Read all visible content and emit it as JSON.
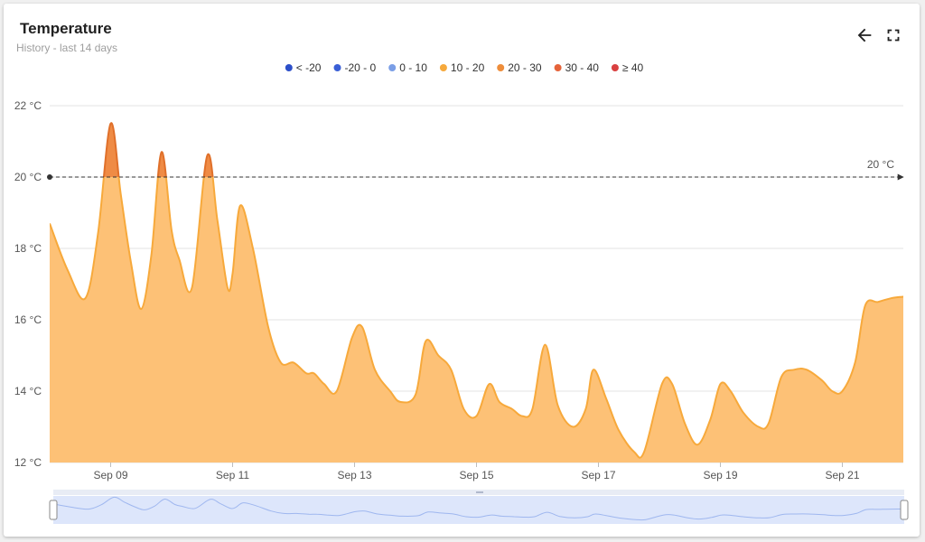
{
  "header": {
    "title": "Temperature",
    "subtitle": "History - last 14 days",
    "back_icon": "arrow-left-icon",
    "fullscreen_icon": "fullscreen-icon"
  },
  "colors": {
    "fill_normal": "#fdc176",
    "line_normal": "#f7a93b",
    "fill_warm": "#ef8b45",
    "line_warm": "#e0702a",
    "gridline": "#e3e3e3",
    "brush_fill": "#dde6fb",
    "brush_line": "#9fb7ef"
  },
  "chart_data": {
    "type": "area",
    "ylim": [
      12,
      22
    ],
    "yticks": [
      {
        "value": 22,
        "label": "22 °C"
      },
      {
        "value": 20,
        "label": "20 °C"
      },
      {
        "value": 18,
        "label": "18 °C"
      },
      {
        "value": 16,
        "label": "16 °C"
      },
      {
        "value": 14,
        "label": "14 °C"
      },
      {
        "value": 12,
        "label": "12 °C"
      }
    ],
    "xlim": [
      "2023-09-08T00:00",
      "2023-09-22T00:00"
    ],
    "xticks": [
      {
        "value": "2023-09-09T00:00",
        "label": "Sep 09"
      },
      {
        "value": "2023-09-11T00:00",
        "label": "Sep 11"
      },
      {
        "value": "2023-09-13T00:00",
        "label": "Sep 13"
      },
      {
        "value": "2023-09-15T00:00",
        "label": "Sep 15"
      },
      {
        "value": "2023-09-17T00:00",
        "label": "Sep 17"
      },
      {
        "value": "2023-09-19T00:00",
        "label": "Sep 19"
      },
      {
        "value": "2023-09-21T00:00",
        "label": "Sep 21"
      }
    ],
    "legend": [
      {
        "label": "< -20",
        "color": "#2c4fc9"
      },
      {
        "label": "-20 - 0",
        "color": "#3a5fd6"
      },
      {
        "label": "0 - 10",
        "color": "#7a9ee6"
      },
      {
        "label": "10 - 20",
        "color": "#f6a93c"
      },
      {
        "label": "20 - 30",
        "color": "#ee8d3b"
      },
      {
        "label": "30 - 40",
        "color": "#e5633a"
      },
      {
        "label": "≥ 40",
        "color": "#d94040"
      }
    ],
    "legend_position": "top-center",
    "grid": true,
    "reference_line": {
      "value": 20,
      "label": "20 °C"
    },
    "series": [
      {
        "x": [
          "2023-09-08T00:00",
          "2023-09-08T07:00",
          "2023-09-08T14:00",
          "2023-09-08T19:00",
          "2023-09-09T00:00",
          "2023-09-09T04:00",
          "2023-09-09T08:00",
          "2023-09-09T12:00",
          "2023-09-09T16:00",
          "2023-09-09T20:00",
          "2023-09-10T00:00",
          "2023-09-10T03:00",
          "2023-09-10T08:00",
          "2023-09-10T14:00",
          "2023-09-10T18:00",
          "2023-09-10T22:00",
          "2023-09-11T00:00",
          "2023-09-11T03:00",
          "2023-09-11T08:00",
          "2023-09-11T14:00",
          "2023-09-11T19:00",
          "2023-09-12T00:00",
          "2023-09-12T05:00",
          "2023-09-12T08:00",
          "2023-09-12T12:00",
          "2023-09-12T17:00",
          "2023-09-12T23:00",
          "2023-09-13T03:00",
          "2023-09-13T08:00",
          "2023-09-13T14:00",
          "2023-09-13T18:00",
          "2023-09-14T00:00",
          "2023-09-14T04:00",
          "2023-09-14T09:00",
          "2023-09-14T14:00",
          "2023-09-14T19:00",
          "2023-09-15T00:00",
          "2023-09-15T05:00",
          "2023-09-15T09:00",
          "2023-09-15T14:00",
          "2023-09-15T18:00",
          "2023-09-15T22:00",
          "2023-09-16T03:00",
          "2023-09-16T08:00",
          "2023-09-16T14:00",
          "2023-09-16T19:00",
          "2023-09-16T22:00",
          "2023-09-17T03:00",
          "2023-09-17T08:00",
          "2023-09-17T14:00",
          "2023-09-17T18:00",
          "2023-09-18T01:00",
          "2023-09-18T05:00",
          "2023-09-18T10:00",
          "2023-09-18T15:00",
          "2023-09-18T20:00",
          "2023-09-19T00:00",
          "2023-09-19T04:00",
          "2023-09-19T09:00",
          "2023-09-19T15:00",
          "2023-09-19T19:00",
          "2023-09-20T00:00",
          "2023-09-20T05:00",
          "2023-09-20T10:00",
          "2023-09-20T16:00",
          "2023-09-20T20:00",
          "2023-09-21T00:00",
          "2023-09-21T05:00",
          "2023-09-21T09:00",
          "2023-09-21T14:00",
          "2023-09-21T19:00",
          "2023-09-22T00:00"
        ],
        "values": [
          18.7,
          17.4,
          16.6,
          18.4,
          21.5,
          19.5,
          17.6,
          16.3,
          17.8,
          20.7,
          18.5,
          17.7,
          16.9,
          20.6,
          18.8,
          16.9,
          17.3,
          19.2,
          18.0,
          15.8,
          14.8,
          14.8,
          14.5,
          14.5,
          14.2,
          14.0,
          15.5,
          15.8,
          14.6,
          14.0,
          13.7,
          13.9,
          15.4,
          15.0,
          14.6,
          13.5,
          13.3,
          14.2,
          13.7,
          13.5,
          13.3,
          13.5,
          15.3,
          13.6,
          13.0,
          13.5,
          14.6,
          13.8,
          12.9,
          12.3,
          12.3,
          14.2,
          14.2,
          13.1,
          12.5,
          13.2,
          14.2,
          14.0,
          13.4,
          13.0,
          13.1,
          14.4,
          14.6,
          14.6,
          14.3,
          14.0,
          14.0,
          14.8,
          16.4,
          16.5,
          16.6,
          16.65
        ]
      }
    ],
    "brush": {
      "start": "2023-09-08T00:00",
      "end": "2023-09-22T00:00"
    }
  }
}
